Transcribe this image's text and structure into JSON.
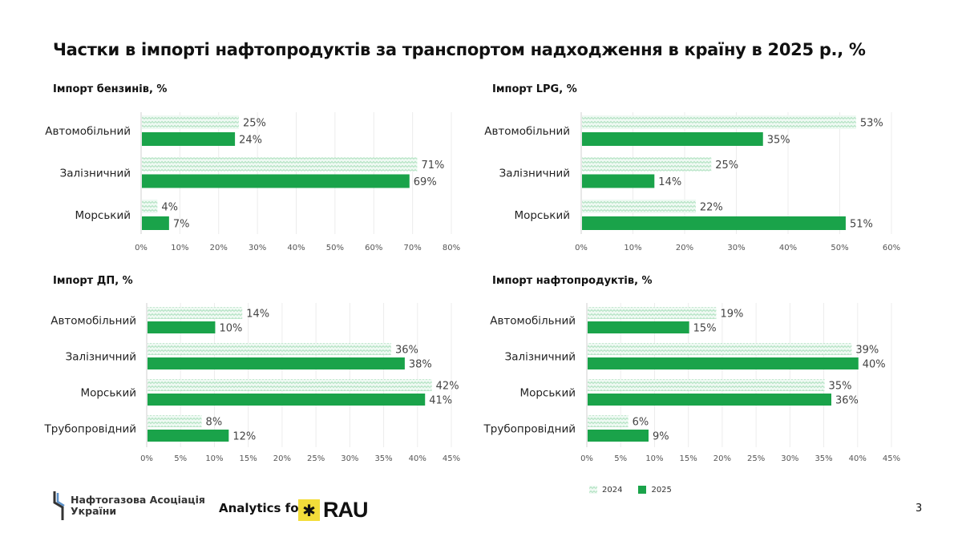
{
  "title": "Частки в імпорті нафтопродуктів за транспортом надходження в країну в 2025 р., %",
  "colors": {
    "y2024": "#c9ecd5",
    "y2025": "#1aa34a",
    "grid": "#ececec"
  },
  "legend": [
    {
      "label": "2024",
      "icon": "zigzag-pattern-swatch"
    },
    {
      "label": "2025",
      "icon": "solid-swatch"
    }
  ],
  "footer": {
    "association_name_line1": "Нафтогазова Асоціація",
    "association_name_line2": "України",
    "analytics_label": "Analytics for",
    "rau_logo": "RAU",
    "page_number": "3"
  },
  "chart_data": [
    {
      "type": "bar",
      "orientation": "horizontal",
      "title": "Імпорт бензинів, %",
      "categories": [
        "Автомобільний",
        "Залізничний",
        "Морський"
      ],
      "series": [
        {
          "name": "2024",
          "values": [
            25,
            71,
            4
          ]
        },
        {
          "name": "2025",
          "values": [
            24,
            69,
            7
          ]
        }
      ],
      "value_labels": {
        "2024": [
          "25%",
          "71%",
          "4%"
        ],
        "2025": [
          "24%",
          "69%",
          "7%"
        ]
      },
      "xlim": [
        0,
        80
      ],
      "xticks": [
        "0%",
        "10%",
        "20%",
        "30%",
        "40%",
        "50%",
        "60%",
        "70%",
        "80%"
      ]
    },
    {
      "type": "bar",
      "orientation": "horizontal",
      "title": "Імпорт LPG, %",
      "categories": [
        "Автомобільний",
        "Залізничний",
        "Морський"
      ],
      "series": [
        {
          "name": "2024",
          "values": [
            53,
            25,
            22
          ]
        },
        {
          "name": "2025",
          "values": [
            35,
            14,
            51
          ]
        }
      ],
      "value_labels": {
        "2024": [
          "53%",
          "25%",
          "22%"
        ],
        "2025": [
          "35%",
          "14%",
          "51%"
        ]
      },
      "xlim": [
        0,
        60
      ],
      "xticks": [
        "0%",
        "10%",
        "20%",
        "30%",
        "40%",
        "50%",
        "60%"
      ]
    },
    {
      "type": "bar",
      "orientation": "horizontal",
      "title": "Імпорт ДП, %",
      "categories": [
        "Автомобільний",
        "Залізничний",
        "Морський",
        "Трубопровідний"
      ],
      "series": [
        {
          "name": "2024",
          "values": [
            14,
            36,
            42,
            8
          ]
        },
        {
          "name": "2025",
          "values": [
            10,
            38,
            41,
            12
          ]
        }
      ],
      "value_labels": {
        "2024": [
          "14%",
          "36%",
          "42%",
          "8%"
        ],
        "2025": [
          "10%",
          "38%",
          "41%",
          "12%"
        ]
      },
      "xlim": [
        0,
        45
      ],
      "xticks": [
        "0%",
        "5%",
        "10%",
        "15%",
        "20%",
        "25%",
        "30%",
        "35%",
        "40%",
        "45%"
      ]
    },
    {
      "type": "bar",
      "orientation": "horizontal",
      "title": "Імпорт нафтопродуктів, %",
      "categories": [
        "Автомобільний",
        "Залізничний",
        "Морський",
        "Трубопровідний"
      ],
      "series": [
        {
          "name": "2024",
          "values": [
            19,
            39,
            35,
            6
          ]
        },
        {
          "name": "2025",
          "values": [
            15,
            40,
            36,
            9
          ]
        }
      ],
      "value_labels": {
        "2024": [
          "19%",
          "39%",
          "35%",
          "6%"
        ],
        "2025": [
          "15%",
          "40%",
          "36%",
          "9%"
        ]
      },
      "xlim": [
        0,
        45
      ],
      "xticks": [
        "0%",
        "5%",
        "10%",
        "15%",
        "20%",
        "25%",
        "30%",
        "35%",
        "40%",
        "45%"
      ]
    }
  ]
}
